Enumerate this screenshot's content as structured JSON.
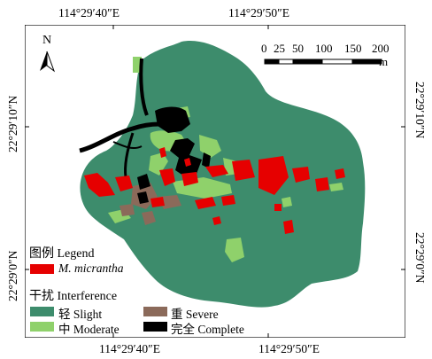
{
  "axes": {
    "top_ticks": [
      "114°29′40″E",
      "114°29′50″E"
    ],
    "bottom_ticks": [
      "114°29′40″E",
      "114°29′50″E"
    ],
    "left_ticks": [
      "22°29′10″N",
      "22°29′0″N"
    ],
    "right_ticks": [
      "22°29′10″N",
      "22°29′0″N"
    ]
  },
  "north_arrow": {
    "label": "N",
    "icon": "north-arrow-icon"
  },
  "scale_bar": {
    "labels": [
      "0",
      "25",
      "50",
      "100",
      "150",
      "200"
    ],
    "unit": "m"
  },
  "legend": {
    "title": "图例 Legend",
    "species": {
      "label": "M. micrantha",
      "color": "#e60000"
    },
    "interference_title": "干扰 Interference",
    "items": [
      {
        "label": "轻 Slight",
        "color": "#3d8c6c"
      },
      {
        "label": "中 Moderate",
        "color": "#8fd16b"
      },
      {
        "label": "重 Severe",
        "color": "#8b6a5a"
      },
      {
        "label": "完全 Complete",
        "color": "#000000"
      }
    ]
  },
  "colors": {
    "slight": "#3d8c6c",
    "moderate": "#8fd16b",
    "severe": "#8b6a5a",
    "complete": "#000000",
    "invasion": "#e60000"
  }
}
